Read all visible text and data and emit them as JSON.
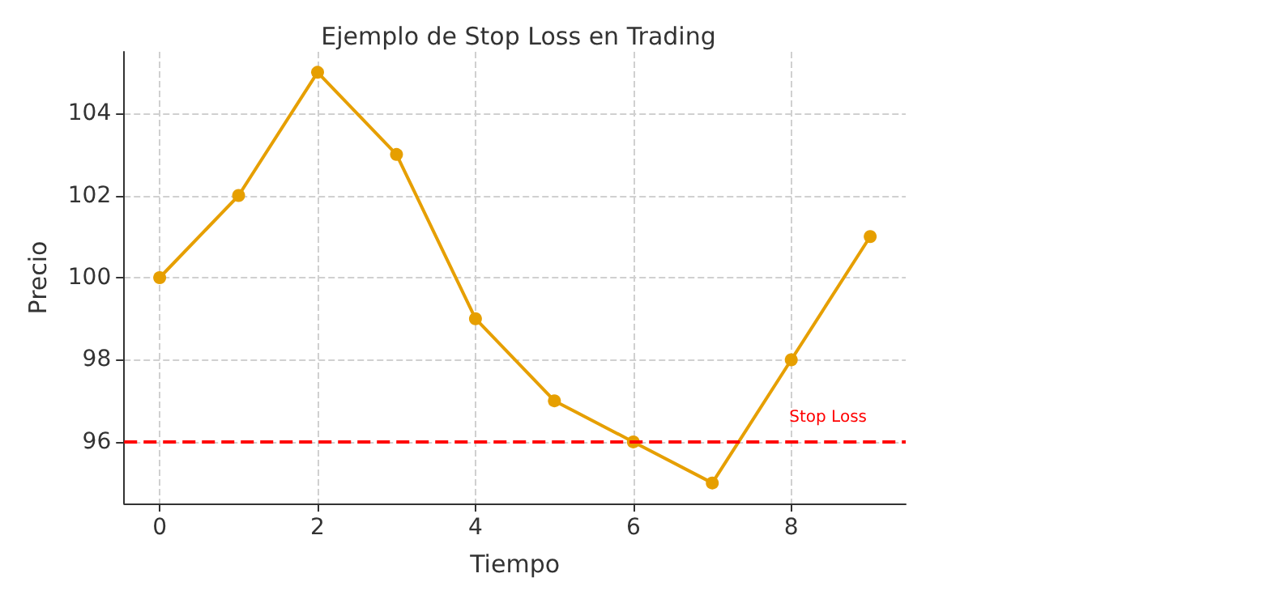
{
  "chart_data": {
    "type": "line",
    "title": "Ejemplo de Stop Loss en Trading",
    "xlabel": "Tiempo",
    "ylabel": "Precio",
    "x": [
      0,
      1,
      2,
      3,
      4,
      5,
      6,
      7,
      8,
      9
    ],
    "series": [
      {
        "color": "#e69f00",
        "values": [
          100,
          102,
          105,
          103,
          99,
          97,
          96,
          95,
          98,
          101
        ]
      }
    ],
    "xlim": [
      -0.45,
      9.45
    ],
    "ylim": [
      94.5,
      105.5
    ],
    "xticks": [
      0,
      2,
      4,
      6,
      8
    ],
    "yticks": [
      96,
      98,
      100,
      102,
      104
    ],
    "ref_lines": [
      {
        "axis": "y",
        "value": 96,
        "label": "Stop Loss",
        "color": "#ff0000",
        "line_style": "dashed"
      }
    ],
    "grid": true,
    "marker": "circle",
    "line_style": "solid"
  }
}
